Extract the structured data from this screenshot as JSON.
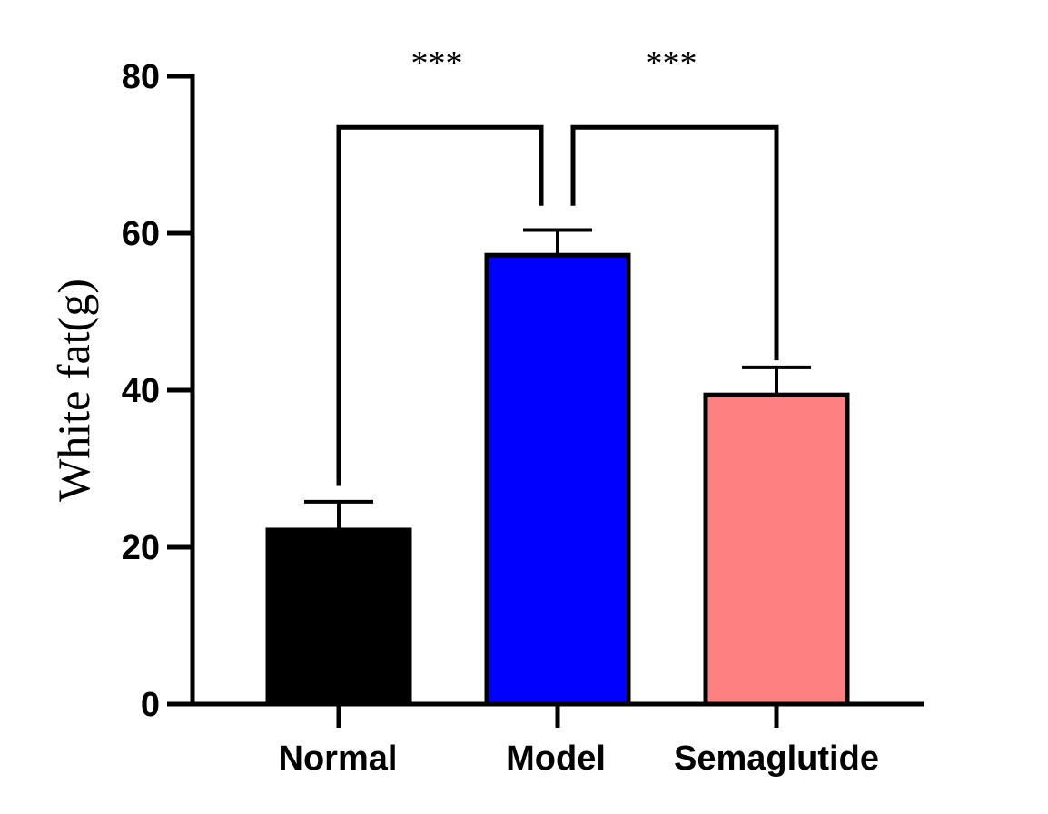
{
  "chart_data": {
    "type": "bar",
    "categories": [
      "Normal",
      "Model",
      "Semaglutide"
    ],
    "values": [
      22.2,
      57.2,
      39.4
    ],
    "errors": [
      3.6,
      3.2,
      3.5
    ],
    "colors": [
      "#000000",
      "#0000ff",
      "#ff8080"
    ],
    "ylabel": "White fat(g)",
    "ylim": [
      0,
      80
    ],
    "yticks": [
      "0",
      "20",
      "40",
      "60",
      "80"
    ],
    "ytick_values": [
      0,
      20,
      40,
      60,
      80
    ],
    "significance": [
      {
        "from": 0,
        "to": 1,
        "label": "***",
        "height": 73.5
      },
      {
        "from": 1,
        "to": 2,
        "label": "***",
        "height": 73.5
      }
    ]
  }
}
